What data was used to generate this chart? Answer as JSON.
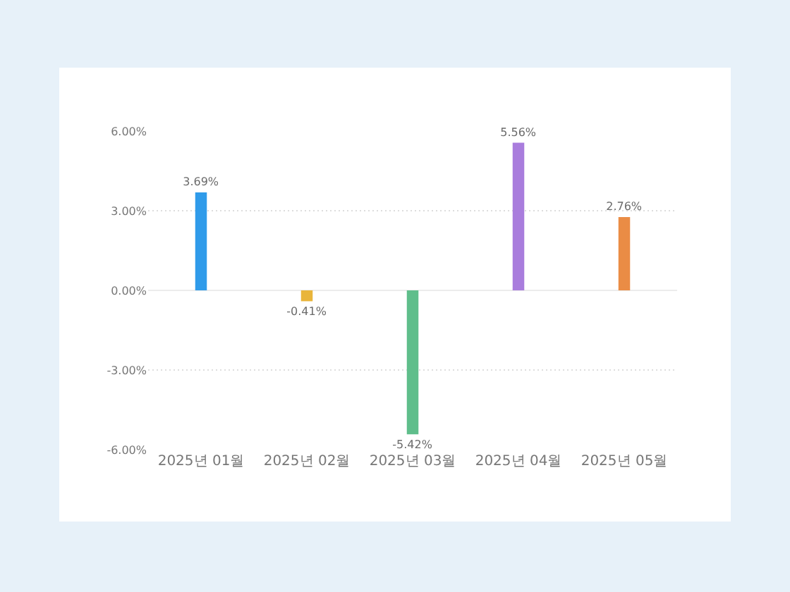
{
  "chart_data": {
    "type": "bar",
    "categories": [
      "2025년 01월",
      "2025년 02월",
      "2025년 03월",
      "2025년 04월",
      "2025년 05월"
    ],
    "values": [
      3.69,
      -0.41,
      -5.42,
      5.56,
      2.76
    ],
    "colors": [
      "#2f9bea",
      "#e9b53b",
      "#5fbe8b",
      "#a97ddd",
      "#ea8c45"
    ],
    "value_labels": [
      "3.69%",
      "-0.41%",
      "-5.42%",
      "5.56%",
      "2.76%"
    ],
    "ylim": [
      -6,
      6
    ],
    "yticks": [
      {
        "value": -6,
        "label": "-6.00%"
      },
      {
        "value": -3,
        "label": "-3.00%"
      },
      {
        "value": 0,
        "label": "0.00%"
      },
      {
        "value": 3,
        "label": "3.00%"
      },
      {
        "value": 6,
        "label": "6.00%"
      }
    ],
    "grid": "y"
  }
}
